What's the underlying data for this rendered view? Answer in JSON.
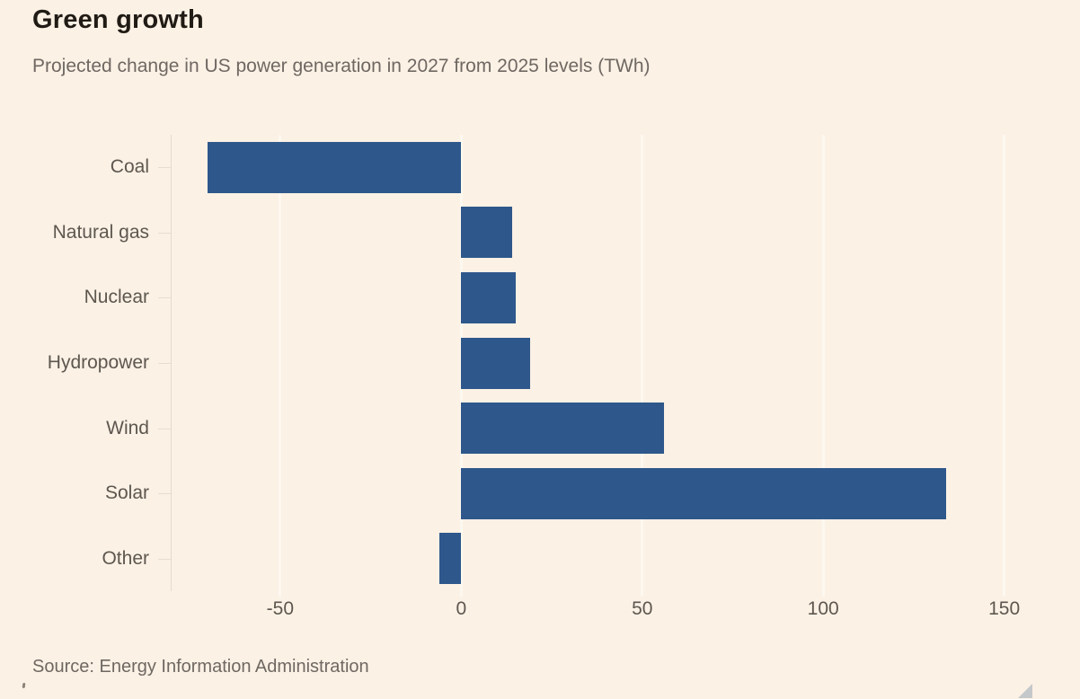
{
  "chart_data": {
    "type": "bar",
    "orientation": "horizontal",
    "title": "Green growth",
    "subtitle": "Projected change in US power generation in 2027 from 2025 levels (TWh)",
    "categories": [
      "Coal",
      "Natural gas",
      "Nuclear",
      "Hydropower",
      "Wind",
      "Solar",
      "Other"
    ],
    "values": [
      -70,
      14,
      15,
      19,
      56,
      134,
      -6
    ],
    "xticks": [
      -50,
      0,
      50,
      100,
      150
    ],
    "xlim": [
      -80,
      162
    ],
    "xlabel": "",
    "ylabel": "",
    "grid": true,
    "legend": false,
    "bar_color": "#2e578b",
    "background_color": "#fbf1e5",
    "gridline_color": "#fdf8ef",
    "axis_color": "#e4dacc",
    "source": "Source: Energy Information Administration"
  }
}
